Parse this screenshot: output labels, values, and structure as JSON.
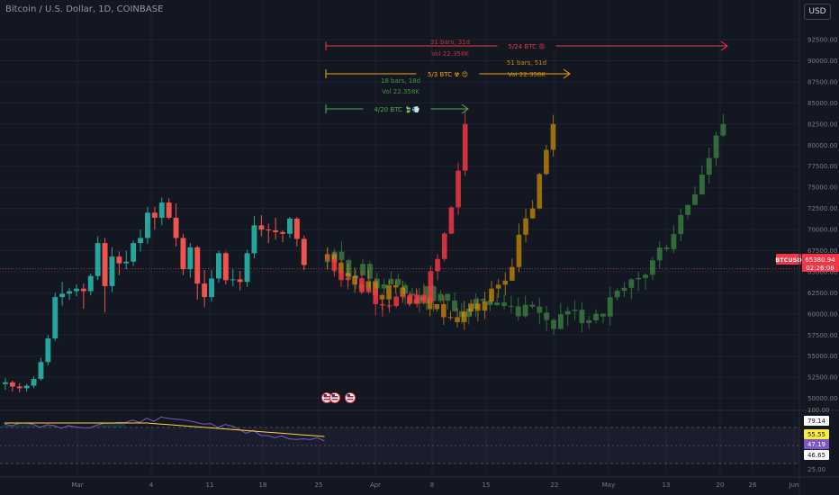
{
  "header": {
    "title": "Bitcoin / U.S. Dollar, 1D, COINBASE",
    "currency_button": "USD"
  },
  "price_axis": {
    "ticks": [
      "92500.00",
      "90000.00",
      "87500.00",
      "85000.00",
      "82500.00",
      "80000.00",
      "77500.00",
      "75000.00",
      "72500.00",
      "70000.00",
      "67500.00",
      "65000.00",
      "62500.00",
      "60000.00",
      "57500.00",
      "55000.00",
      "52500.00",
      "50000.00"
    ],
    "symbol_label": "BTCUSD",
    "last_price": "65380.94",
    "countdown": "02:26:08",
    "symbol_color": "#f23645"
  },
  "time_axis": {
    "labels": [
      "Mar",
      "4",
      "11",
      "18",
      "25",
      "Apr",
      "8",
      "15",
      "22",
      "May",
      "13",
      "20",
      "26",
      "Jun"
    ]
  },
  "projections": [
    {
      "stats": "31 bars, 31d",
      "vol": "Vol 22.358K",
      "label": "5/24 BTC 😡",
      "color": "#f23645"
    },
    {
      "stats": "51 bars, 51d",
      "vol": "Vol 22.358K",
      "label": "5/3 BTC ☢ 😊",
      "color": "#f7a600"
    },
    {
      "stats": "18 bars, 18d",
      "vol": "Vol 22.358K",
      "label": "4/20 BTC 🍃💨",
      "color": "#4caf50"
    }
  ],
  "event_markers": {
    "flag_icons": [
      "us-flag-icon",
      "us-flag-icon",
      "us-flag-icon"
    ]
  },
  "rsi": {
    "ticks": [
      "100.00",
      "50.00",
      "25.00"
    ],
    "labels": [
      "79.14",
      "55.55",
      "47.19",
      "46.65"
    ],
    "label_colors": [
      "#ffffff",
      "#ffeb3b",
      "#7e57c2",
      "#ffffff"
    ]
  },
  "chart_data": {
    "type": "candlestick",
    "title": "Bitcoin / U.S. Dollar, 1D, COINBASE",
    "ylim": [
      49000,
      94000
    ],
    "y_ticks": [
      92500,
      90000,
      87500,
      85000,
      82500,
      80000,
      77500,
      75000,
      72500,
      70000,
      67500,
      65000,
      62500,
      60000,
      57500,
      55000,
      52500,
      50000
    ],
    "last_price": 65380.94,
    "colors": {
      "up": "#26a69a",
      "down": "#ef5350"
    },
    "main_candles": [
      [
        51700,
        52400,
        51000,
        51900
      ],
      [
        51900,
        52100,
        50800,
        51400
      ],
      [
        51400,
        51800,
        50700,
        51200
      ],
      [
        51200,
        51700,
        50800,
        51500
      ],
      [
        51500,
        52600,
        51200,
        52300
      ],
      [
        52300,
        54800,
        52100,
        54300
      ],
      [
        54300,
        57500,
        53900,
        57100
      ],
      [
        57100,
        62500,
        56800,
        62000
      ],
      [
        62000,
        63800,
        61000,
        62400
      ],
      [
        62400,
        63100,
        61700,
        62700
      ],
      [
        62700,
        63500,
        62100,
        63000
      ],
      [
        63000,
        63600,
        60600,
        62700
      ],
      [
        62700,
        64800,
        62200,
        64500
      ],
      [
        64500,
        69200,
        64000,
        68400
      ],
      [
        68400,
        69000,
        60200,
        63300
      ],
      [
        63300,
        67900,
        62600,
        66800
      ],
      [
        66800,
        67400,
        64600,
        66000
      ],
      [
        66000,
        67500,
        65300,
        66200
      ],
      [
        66200,
        68700,
        65700,
        68400
      ],
      [
        68400,
        70000,
        67400,
        69000
      ],
      [
        69000,
        72700,
        68300,
        72000
      ],
      [
        72000,
        72700,
        70000,
        71400
      ],
      [
        71400,
        73800,
        70500,
        73200
      ],
      [
        73200,
        73700,
        71200,
        71400
      ],
      [
        71400,
        73100,
        68000,
        69000
      ],
      [
        69000,
        69500,
        64600,
        65300
      ],
      [
        65300,
        68400,
        64300,
        67900
      ],
      [
        67900,
        68100,
        61700,
        63600
      ],
      [
        63600,
        65200,
        60800,
        62000
      ],
      [
        62000,
        65200,
        61500,
        64200
      ],
      [
        64200,
        67500,
        63700,
        67200
      ],
      [
        67200,
        67400,
        63500,
        64000
      ],
      [
        64000,
        65300,
        63300,
        64100
      ],
      [
        64100,
        65100,
        62800,
        63800
      ],
      [
        63800,
        67600,
        63200,
        67200
      ],
      [
        67200,
        71600,
        66600,
        70500
      ],
      [
        70500,
        71700,
        69200,
        70000
      ],
      [
        70000,
        70700,
        68400,
        69900
      ],
      [
        69900,
        71400,
        68800,
        69700
      ],
      [
        69700,
        69900,
        68500,
        69500
      ],
      [
        69500,
        71500,
        69000,
        71300
      ],
      [
        71300,
        71500,
        68000,
        68900
      ],
      [
        68900,
        69300,
        65200,
        65800
      ]
    ],
    "projections": [
      {
        "name": "4/20 BTC",
        "color": "#4caf50",
        "bars": 18,
        "target": 82500
      },
      {
        "name": "5/3 BTC",
        "color": "#f7a600",
        "bars": 51,
        "target": 82500
      },
      {
        "name": "5/24 BTC",
        "color": "#f23645",
        "bars": 31,
        "target": 82500
      }
    ]
  }
}
